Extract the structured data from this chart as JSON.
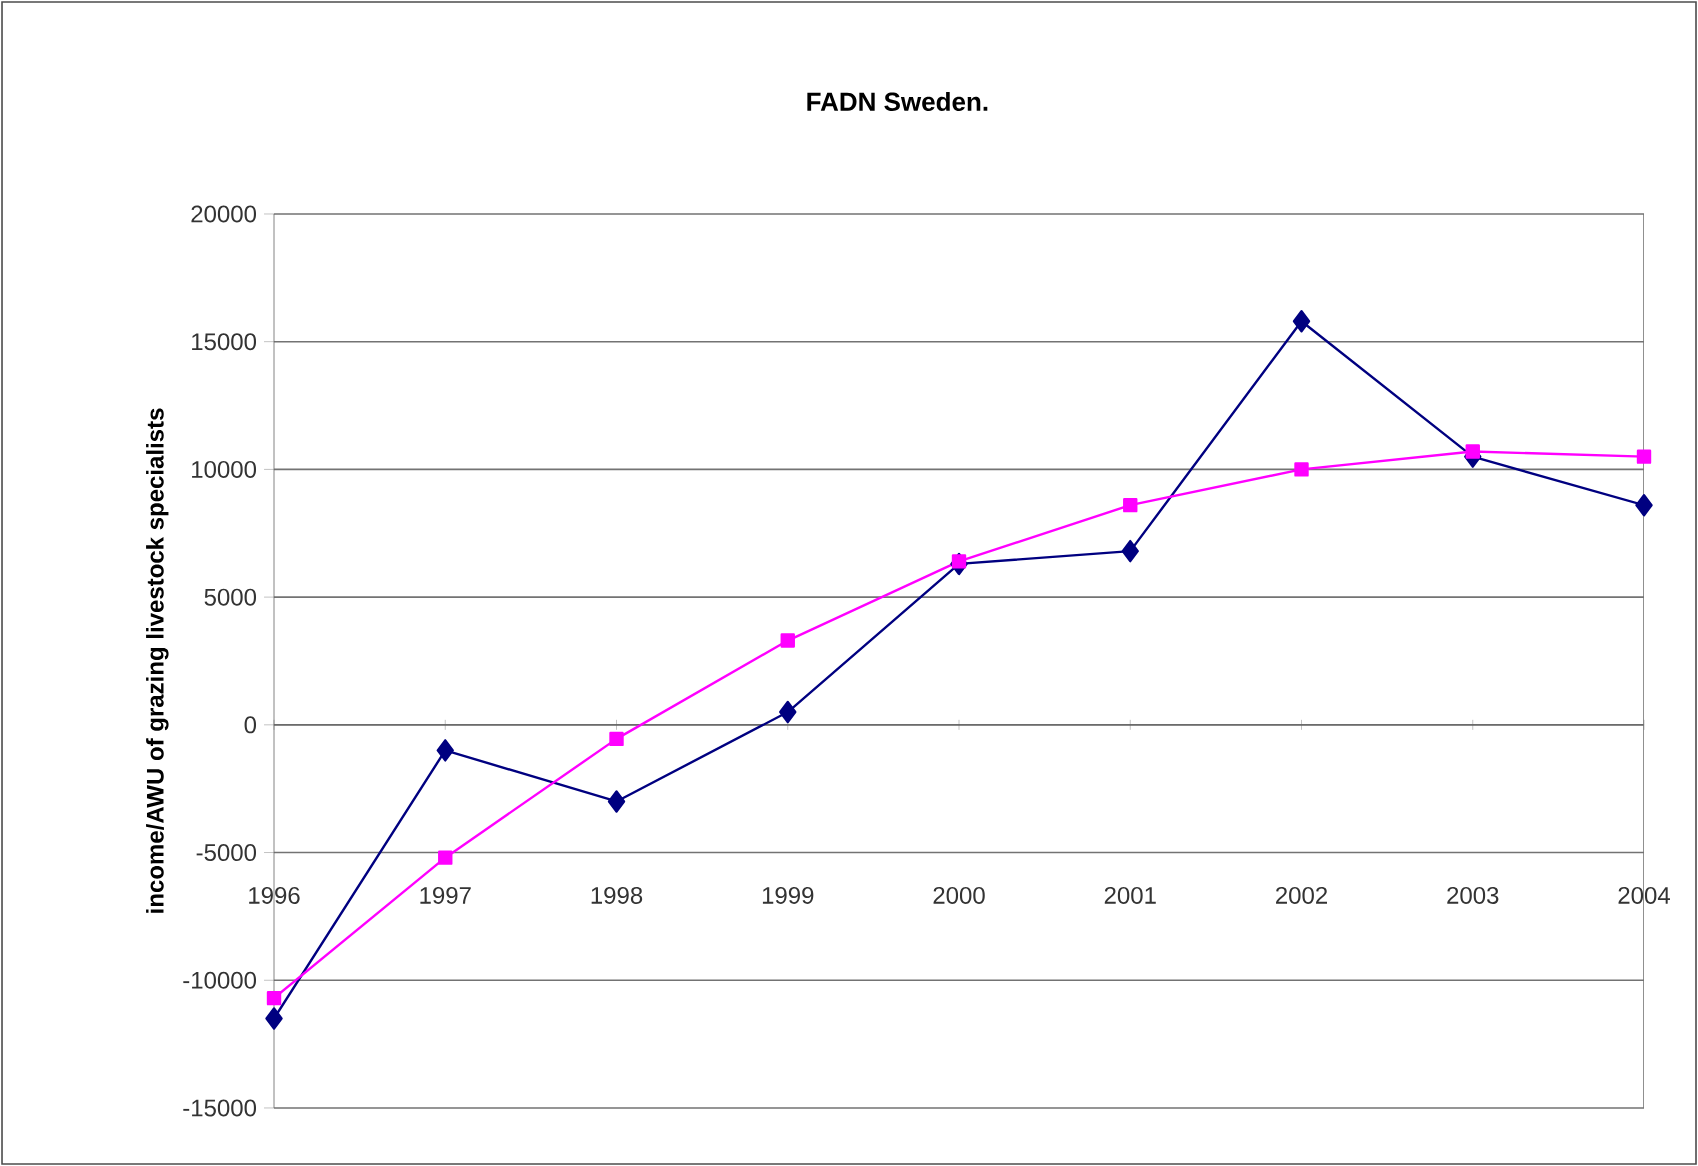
{
  "chart_data": {
    "type": "line",
    "title": "FADN Sweden.",
    "ylabel": "income/AWU of grazing livestock specialists",
    "categories": [
      "1996",
      "1997",
      "1998",
      "1999",
      "2000",
      "2001",
      "2002",
      "2003",
      "2004"
    ],
    "series": [
      {
        "color": "#000080",
        "marker": "diamond",
        "values": [
          -11500,
          -1000,
          -3000,
          500,
          6300,
          6800,
          15800,
          10500,
          8600
        ]
      },
      {
        "color": "#ff00ff",
        "marker": "square",
        "values": [
          -10700,
          -5200,
          -550,
          3300,
          6400,
          8600,
          10000,
          10700,
          10500
        ]
      }
    ],
    "ylim": [
      -15000,
      20000
    ],
    "yticks": [
      -15000,
      -10000,
      -5000,
      0,
      5000,
      10000,
      15000,
      20000
    ],
    "grid": "y",
    "line_style": "solid"
  }
}
